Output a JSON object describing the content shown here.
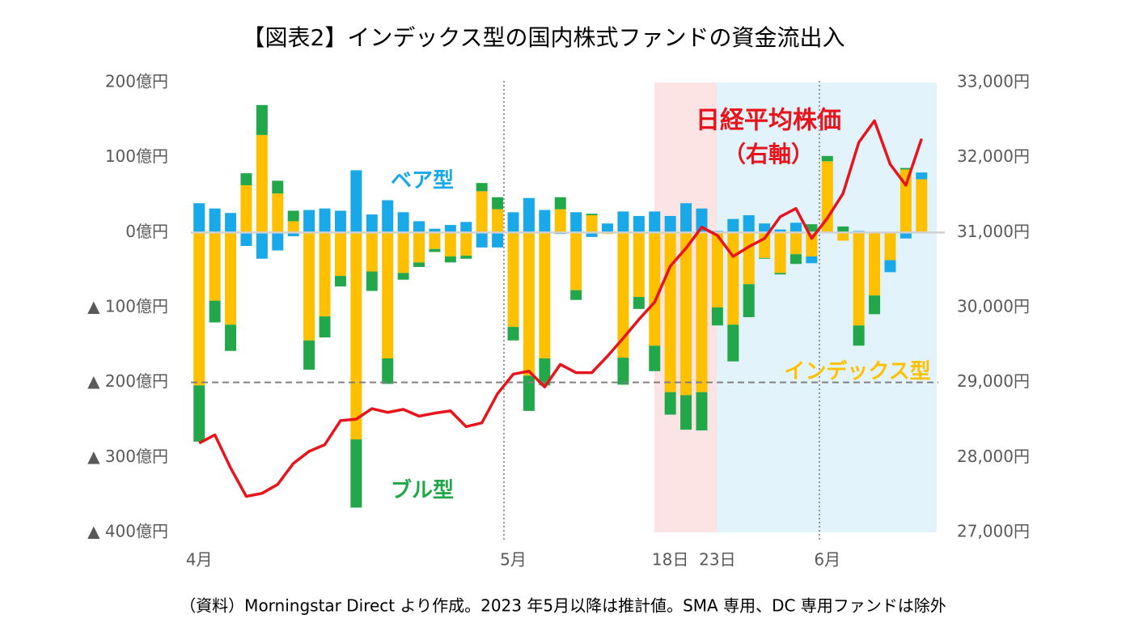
{
  "chart_data": {
    "type": "bar_line",
    "title": "【図表2】インデックス型の国内株式ファンドの資金流出入",
    "annotations": [
      "（右軸）"
    ],
    "source": "（資料）Morningstar Direct より作成。2023 年5月以降は推計値。SMA 専用、DC 専用ファンドは除外",
    "categories": [
      "4月",
      null,
      null,
      null,
      null,
      null,
      null,
      null,
      null,
      null,
      null,
      null,
      null,
      null,
      null,
      null,
      null,
      null,
      null,
      null,
      "5月",
      null,
      null,
      null,
      null,
      null,
      null,
      null,
      null,
      null,
      "18日",
      null,
      null,
      "23日",
      null,
      null,
      null,
      null,
      null,
      null,
      "6月",
      null,
      null,
      null,
      null,
      null,
      null
    ],
    "ylim": [
      -400,
      200
    ],
    "yticks": [
      {
        "value": 200,
        "label": "200億円"
      },
      {
        "value": 100,
        "label": "100億円"
      },
      {
        "value": 0,
        "label": "0億円"
      },
      {
        "value": -100,
        "label": "▲ 100億円"
      },
      {
        "value": -200,
        "label": "▲ 200億円"
      },
      {
        "value": -300,
        "label": "▲ 300億円"
      },
      {
        "value": -400,
        "label": "▲ 400億円"
      }
    ],
    "y2lim": [
      27000,
      33000
    ],
    "y2ticks": [
      {
        "value": 33000,
        "label": "33,000円"
      },
      {
        "value": 32000,
        "label": "32,000円"
      },
      {
        "value": 31000,
        "label": "31,000円"
      },
      {
        "value": 30000,
        "label": "30,000円"
      },
      {
        "value": 29000,
        "label": "29,000円"
      },
      {
        "value": 28000,
        "label": "28,000円"
      },
      {
        "value": 27000,
        "label": "27,000円"
      }
    ],
    "hline": -200,
    "series": [
      {
        "name": "インデックス型",
        "type": "bar",
        "color": "#ffc000",
        "values": [
          -204,
          -91,
          -123,
          63,
          130,
          52,
          15,
          -144,
          -112,
          -58,
          -276,
          -52,
          -168,
          -54,
          -40,
          -22,
          -32,
          -31,
          55,
          31,
          -126,
          -191,
          -168,
          31,
          -77,
          23,
          -2,
          -167,
          -86,
          -151,
          -213,
          -217,
          -213,
          -100,
          -123,
          -69,
          -34,
          -54,
          -29,
          -32,
          95,
          -11,
          -124,
          -84,
          -37,
          84,
          71
        ]
      },
      {
        "name": "ブル型",
        "type": "bar",
        "color": "#22a84a",
        "values": [
          -75,
          -29,
          -35,
          16,
          40,
          17,
          14,
          -39,
          -28,
          -14,
          -91,
          -26,
          -34,
          -9,
          -6,
          -4,
          -8,
          -4,
          11,
          16,
          -18,
          -47,
          -36,
          16,
          -13,
          2,
          0,
          -36,
          -16,
          -34,
          -30,
          -46,
          -51,
          -24,
          -49,
          -44,
          -1,
          -2,
          -13,
          11,
          7,
          8,
          -27,
          -25,
          0,
          2,
          0
        ]
      },
      {
        "name": "ベア型",
        "type": "bar",
        "color": "#1aa9e8",
        "values": [
          39,
          32,
          26,
          -18,
          -35,
          -24,
          -5,
          30,
          32,
          29,
          83,
          24,
          43,
          27,
          15,
          5,
          10,
          14,
          -20,
          -20,
          27,
          46,
          30,
          -2,
          27,
          -6,
          12,
          28,
          22,
          28,
          22,
          39,
          32,
          2,
          18,
          23,
          12,
          4,
          13,
          -9,
          0,
          0,
          2,
          0,
          -16,
          -8,
          9
        ]
      },
      {
        "name": "日経平均株価",
        "type": "line",
        "axis": "y2",
        "color": "#e8141c",
        "values": [
          28190,
          28300,
          27860,
          27480,
          27520,
          27640,
          27920,
          28080,
          28170,
          28490,
          28510,
          28650,
          28600,
          28640,
          28550,
          28590,
          28620,
          28410,
          28460,
          28850,
          29110,
          29150,
          28940,
          29240,
          29130,
          29130,
          29350,
          29590,
          29840,
          30070,
          30550,
          30790,
          31070,
          30960,
          30680,
          30810,
          30920,
          31210,
          31320,
          30920,
          31190,
          31520,
          32200,
          32490,
          31910,
          31630,
          32250
        ]
      }
    ]
  }
}
